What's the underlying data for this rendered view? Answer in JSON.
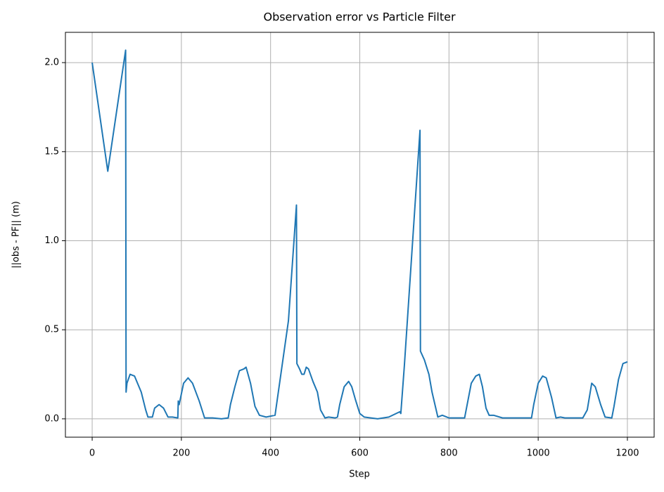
{
  "chart_data": {
    "type": "line",
    "title": "Observation error vs Particle Filter",
    "x_label": "Step",
    "y_label": "||obs - PF|| (m)",
    "color": "#1f77b4",
    "grid": true,
    "xlim": [
      -60,
      1260
    ],
    "ylim": [
      -0.103,
      2.17
    ],
    "xticks": [
      0,
      200,
      400,
      600,
      800,
      1000,
      1200
    ],
    "yticks": [
      {
        "value": 0,
        "label": "0.0"
      },
      0.5,
      {
        "value": 1,
        "label": "1.0"
      },
      1.5,
      {
        "value": 2,
        "label": "2.0"
      }
    ],
    "x": [
      0,
      35,
      75,
      76,
      78,
      85,
      95,
      110,
      120,
      125,
      135,
      140,
      150,
      160,
      170,
      180,
      192,
      193,
      195,
      205,
      215,
      225,
      240,
      252,
      270,
      290,
      305,
      310,
      320,
      330,
      340,
      345,
      355,
      365,
      375,
      390,
      410,
      440,
      458,
      459,
      465,
      470,
      475,
      480,
      485,
      495,
      505,
      512,
      522,
      530,
      545,
      550,
      555,
      565,
      575,
      582,
      590,
      600,
      610,
      640,
      665,
      690,
      692,
      700,
      735,
      736,
      745,
      755,
      762,
      775,
      785,
      800,
      820,
      835,
      840,
      850,
      860,
      868,
      875,
      883,
      890,
      900,
      920,
      960,
      985,
      990,
      1000,
      1010,
      1018,
      1030,
      1040,
      1050,
      1060,
      1100,
      1110,
      1120,
      1128,
      1140,
      1150,
      1165,
      1170,
      1180,
      1190,
      1200
    ],
    "values": [
      2.0,
      1.39,
      2.07,
      0.15,
      0.2,
      0.25,
      0.24,
      0.15,
      0.05,
      0.01,
      0.01,
      0.06,
      0.08,
      0.06,
      0.01,
      0.01,
      0.005,
      0.1,
      0.08,
      0.2,
      0.23,
      0.2,
      0.1,
      0.005,
      0.005,
      0.0,
      0.005,
      0.08,
      0.18,
      0.27,
      0.28,
      0.29,
      0.2,
      0.07,
      0.02,
      0.01,
      0.02,
      0.55,
      1.2,
      0.31,
      0.28,
      0.25,
      0.25,
      0.29,
      0.28,
      0.21,
      0.15,
      0.05,
      0.005,
      0.01,
      0.005,
      0.01,
      0.08,
      0.18,
      0.21,
      0.18,
      0.11,
      0.03,
      0.01,
      0.0,
      0.01,
      0.04,
      0.03,
      0.3,
      1.62,
      0.38,
      0.33,
      0.25,
      0.15,
      0.01,
      0.02,
      0.005,
      0.005,
      0.005,
      0.07,
      0.2,
      0.24,
      0.25,
      0.18,
      0.06,
      0.02,
      0.02,
      0.005,
      0.005,
      0.005,
      0.08,
      0.2,
      0.24,
      0.23,
      0.12,
      0.005,
      0.01,
      0.005,
      0.005,
      0.05,
      0.2,
      0.18,
      0.08,
      0.01,
      0.005,
      0.07,
      0.22,
      0.31,
      0.32
    ]
  }
}
